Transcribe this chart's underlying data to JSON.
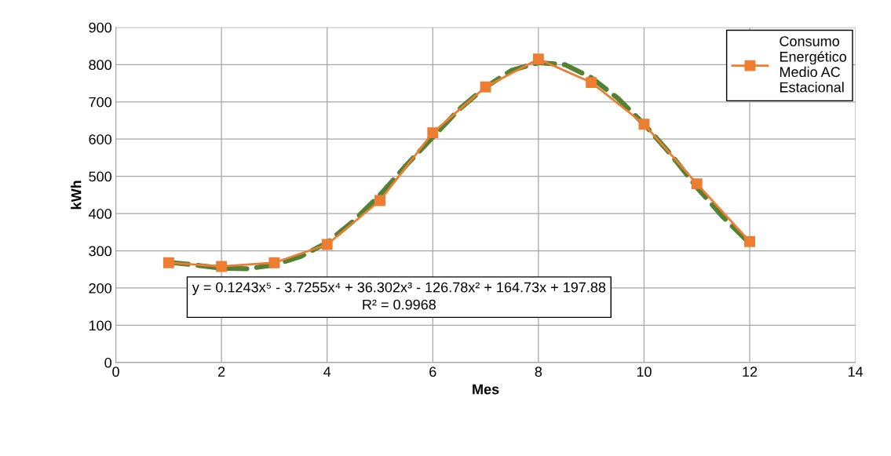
{
  "chart_data": {
    "type": "line",
    "xlabel": "Mes",
    "ylabel": "kWh",
    "xlim": [
      0,
      14
    ],
    "xticks": [
      0,
      2,
      4,
      6,
      8,
      10,
      12,
      14
    ],
    "ylim": [
      0,
      900
    ],
    "yticks": [
      0,
      100,
      200,
      300,
      400,
      500,
      600,
      700,
      800,
      900
    ],
    "grid": true,
    "legend": "top right",
    "series": [
      {
        "name": "Consumo\nEnergético\nMedio AC\nEstacional",
        "color": "#ed7d31",
        "marker": "square",
        "line_style": "solid",
        "x": [
          1,
          2,
          3,
          4,
          5,
          6,
          7,
          8,
          9,
          10,
          11,
          12
        ],
        "values": [
          268,
          258,
          268,
          317,
          435,
          617,
          740,
          815,
          752,
          640,
          480,
          325
        ]
      },
      {
        "color": "#548235",
        "marker": "none",
        "line_style": "dashed",
        "x": [
          1,
          1.5,
          2,
          2.5,
          3,
          3.5,
          4,
          4.5,
          5,
          5.5,
          6,
          6.5,
          7,
          7.5,
          8,
          8.5,
          9,
          9.5,
          10,
          10.5,
          11,
          11.5,
          12
        ],
        "values": [
          269,
          262,
          253,
          252,
          262,
          285,
          322,
          380,
          450,
          530,
          605,
          680,
          740,
          785,
          805,
          800,
          765,
          710,
          640,
          560,
          470,
          390,
          320
        ]
      }
    ],
    "annotations": [
      "y = 0.1243x⁵ - 3.7255x⁴ + 36.302x³ - 126.78x² + 164.73x + 197.88\nR² = 0.9968"
    ]
  }
}
